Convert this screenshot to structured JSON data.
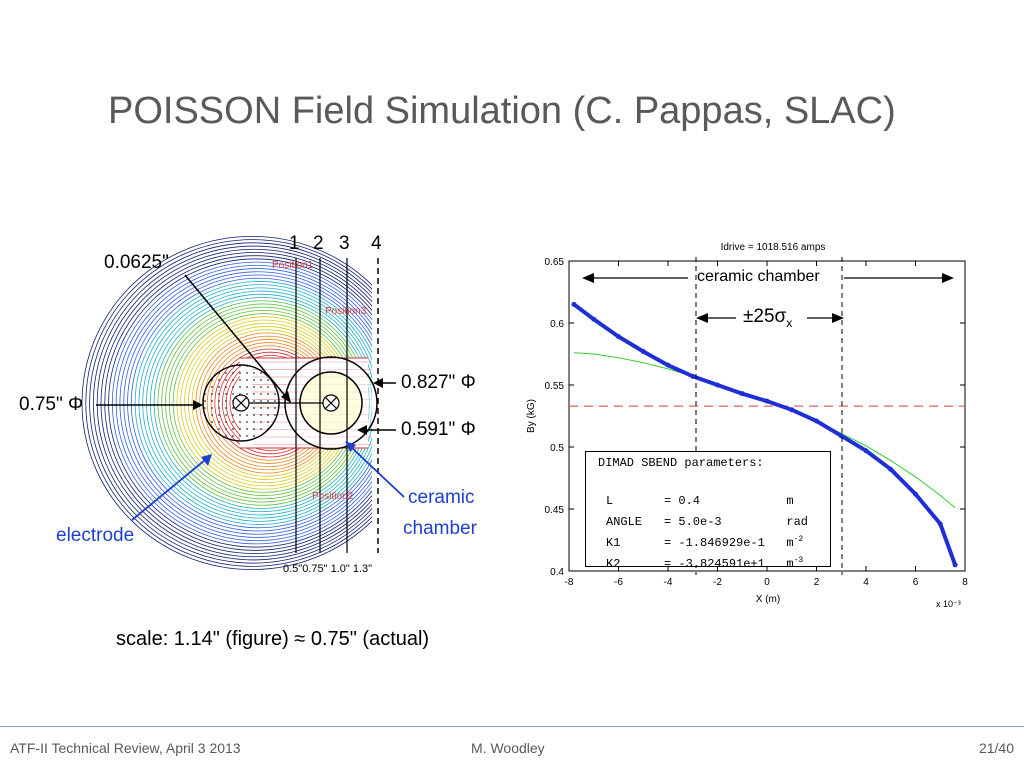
{
  "slide": {
    "title": "POISSON Field Simulation (C. Pappas, SLAC)",
    "footer_left": "ATF-II Technical Review, April 3 2013",
    "footer_center": "M. Woodley",
    "footer_right": "21/40",
    "scale_note": "scale: 1.14\" (figure) ≈ 0.75\" (actual)"
  },
  "field_figure": {
    "positions": [
      "1",
      "2",
      "3",
      "4"
    ],
    "label_thickness": "0.0625\"",
    "label_electrode_dia": "0.75\" Φ",
    "label_outer_dia": "0.827\" Φ",
    "label_inner_dia": "0.591\" Φ",
    "label_ceramic": [
      "ceramic",
      "chamber"
    ],
    "label_electrode": "electrode",
    "plot_labels": [
      "Position1",
      "Position3",
      "Position2"
    ],
    "distance_labels": [
      "0.5\"",
      "0.75\"",
      "1.0\"",
      "1.3\""
    ]
  },
  "chart_data": {
    "type": "line",
    "title": "Idrive = 1018.516 amps",
    "xlabel": "X (m)",
    "ylabel": "By (kG)",
    "x_multiplier": "x 10⁻³",
    "xlim": [
      -8,
      8
    ],
    "ylim": [
      0.4,
      0.65
    ],
    "xticks": [
      "-8",
      "-6",
      "-4",
      "-2",
      "0",
      "2",
      "4",
      "6",
      "8"
    ],
    "yticks": [
      "0.4",
      "0.45",
      "0.5",
      "0.55",
      "0.6",
      "0.65"
    ],
    "grid": false,
    "series": [
      {
        "color": "#1f2fd6",
        "x": [
          -7.8,
          -7.0,
          -6.0,
          -5.0,
          -4.0,
          -3.0,
          -2.0,
          -1.0,
          0.0,
          1.0,
          2.0,
          3.0,
          4.0,
          5.0,
          6.0,
          7.0,
          7.6
        ],
        "y": [
          0.615,
          0.603,
          0.589,
          0.577,
          0.566,
          0.557,
          0.55,
          0.543,
          0.537,
          0.53,
          0.521,
          0.509,
          0.497,
          0.482,
          0.462,
          0.438,
          0.405
        ]
      },
      {
        "color": "#33cc33",
        "x": [
          -7.8,
          -7.0,
          -6.0,
          -5.0,
          -4.0,
          -3.0,
          -2.0,
          -1.0,
          0.0,
          1.0,
          2.0,
          3.0,
          4.0,
          5.0,
          6.0,
          7.0,
          7.6
        ],
        "y": [
          0.576,
          0.575,
          0.572,
          0.568,
          0.563,
          0.557,
          0.55,
          0.543,
          0.537,
          0.53,
          0.521,
          0.511,
          0.501,
          0.489,
          0.476,
          0.461,
          0.451
        ]
      },
      {
        "color": "#e06060",
        "x": [
          -8,
          8
        ],
        "y": [
          0.533,
          0.533
        ]
      }
    ],
    "annotations": {
      "ceramic_chamber": "ceramic chamber",
      "sigma": "±25σ",
      "sigma_sub": "x",
      "box_title": "DIMAD SBEND parameters:",
      "box_rows": [
        {
          "name": "L",
          "value": "0.4",
          "unit": "m",
          "sup": ""
        },
        {
          "name": "ANGLE",
          "value": "5.0e-3",
          "unit": "rad",
          "sup": ""
        },
        {
          "name": "K1",
          "value": "-1.846929e-1",
          "unit": "m",
          "sup": "-2"
        },
        {
          "name": "K2",
          "value": "-3.824591e+1",
          "unit": "m",
          "sup": "-3"
        }
      ]
    }
  }
}
